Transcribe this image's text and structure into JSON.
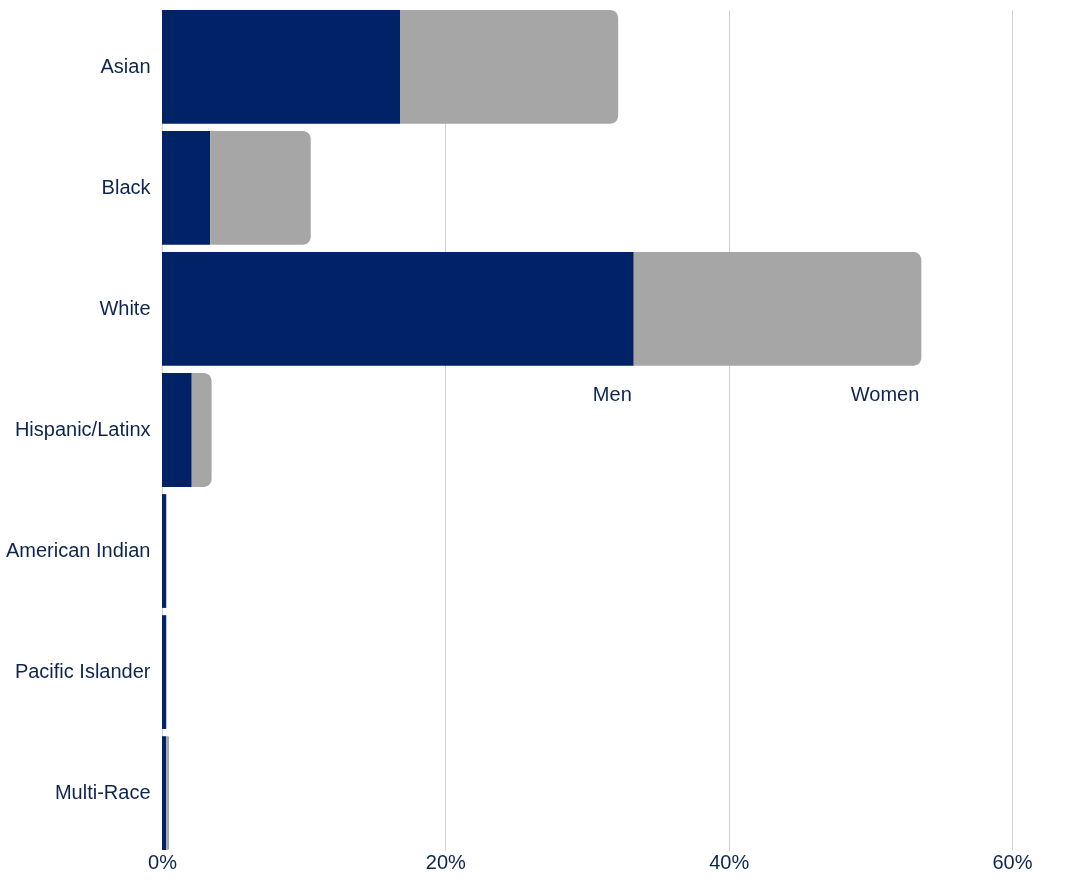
{
  "chart_data": {
    "type": "bar",
    "orientation": "horizontal",
    "stacked": true,
    "categories": [
      "Asian",
      "Black",
      "White",
      "Hispanic/Latinx",
      "American Indian",
      "Pacific Islander",
      "Multi-Race"
    ],
    "series": [
      {
        "name": "Men",
        "color": "#002266",
        "values": [
          16.8,
          3.4,
          33.3,
          2.1,
          0.3,
          0.3,
          0.3
        ]
      },
      {
        "name": "Women",
        "color": "#a6a6a6",
        "values": [
          15.4,
          7.1,
          20.3,
          1.4,
          0,
          0,
          0.2
        ]
      }
    ],
    "xlim": [
      0,
      60
    ],
    "xticks": [
      {
        "value": 0,
        "label": "0%"
      },
      {
        "value": 20,
        "label": "20%"
      },
      {
        "value": 40,
        "label": "40%"
      },
      {
        "value": 60,
        "label": "60%"
      }
    ],
    "grid": "x"
  }
}
